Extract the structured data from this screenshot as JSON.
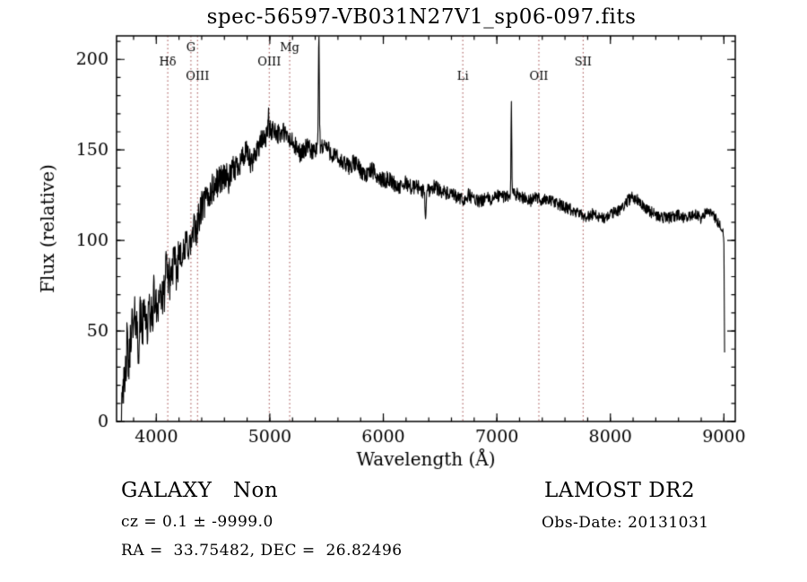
{
  "title": "spec-56597-VB031N27V1_sp06-097.fits",
  "annotations": {
    "class_label": "GALAXY   Non",
    "survey": "LAMOST DR2",
    "cz": "cz = 0.1 ± -9999.0",
    "obs_date": "Obs-Date: 20131031",
    "coords": "RA =  33.75482, DEC =  26.82496"
  },
  "chart_data": {
    "type": "line",
    "title": "spec-56597-VB031N27V1_sp06-097.fits",
    "xlabel": "Wavelength (Å)",
    "ylabel": "Flux (relative)",
    "xlim": [
      3650,
      9100
    ],
    "ylim": [
      0,
      213
    ],
    "x_ticks_major": [
      4000,
      5000,
      6000,
      7000,
      8000,
      9000
    ],
    "x_minor_step": 200,
    "y_ticks_major": [
      0,
      50,
      100,
      150,
      200
    ],
    "y_minor_step": 10,
    "grid": false,
    "legend": "none",
    "line_color": "#000000",
    "marker_line_color": "#a04848",
    "spectral_lines": [
      {
        "label": "Hδ",
        "wavelength": 4101,
        "row": 1
      },
      {
        "label": "G",
        "wavelength": 4305,
        "row": 0
      },
      {
        "label": "OIII",
        "wavelength": 4363,
        "row": 2
      },
      {
        "label": "OIII",
        "wavelength": 4995,
        "row": 1
      },
      {
        "label": "Mg",
        "wavelength": 5175,
        "row": 0
      },
      {
        "label": "Li",
        "wavelength": 6700,
        "row": 2
      },
      {
        "label": "OII",
        "wavelength": 7370,
        "row": 2
      },
      {
        "label": "SII",
        "wavelength": 7760,
        "row": 1
      }
    ],
    "spectrum_anchors": [
      [
        3690,
        4
      ],
      [
        3705,
        28
      ],
      [
        3720,
        12
      ],
      [
        3740,
        42
      ],
      [
        3760,
        30
      ],
      [
        3780,
        55
      ],
      [
        3800,
        48
      ],
      [
        3820,
        62
      ],
      [
        3840,
        40
      ],
      [
        3860,
        58
      ],
      [
        3880,
        52
      ],
      [
        3900,
        66
      ],
      [
        3920,
        50
      ],
      [
        3940,
        62
      ],
      [
        3960,
        55
      ],
      [
        3980,
        70
      ],
      [
        4000,
        62
      ],
      [
        4030,
        72
      ],
      [
        4060,
        65
      ],
      [
        4090,
        85
      ],
      [
        4120,
        78
      ],
      [
        4150,
        88
      ],
      [
        4180,
        82
      ],
      [
        4210,
        98
      ],
      [
        4240,
        90
      ],
      [
        4270,
        100
      ],
      [
        4300,
        96
      ],
      [
        4330,
        105
      ],
      [
        4360,
        108
      ],
      [
        4400,
        118
      ],
      [
        4440,
        122
      ],
      [
        4480,
        127
      ],
      [
        4520,
        130
      ],
      [
        4560,
        134
      ],
      [
        4600,
        136
      ],
      [
        4640,
        133
      ],
      [
        4680,
        139
      ],
      [
        4720,
        142
      ],
      [
        4760,
        146
      ],
      [
        4800,
        148
      ],
      [
        4840,
        141
      ],
      [
        4880,
        150
      ],
      [
        4920,
        154
      ],
      [
        4960,
        157
      ],
      [
        5000,
        160
      ],
      [
        5040,
        162
      ],
      [
        5080,
        158
      ],
      [
        5120,
        160
      ],
      [
        5160,
        156
      ],
      [
        5200,
        154
      ],
      [
        5240,
        150
      ],
      [
        5280,
        148
      ],
      [
        5320,
        151
      ],
      [
        5360,
        150
      ],
      [
        5400,
        149
      ],
      [
        5440,
        151
      ],
      [
        5480,
        153
      ],
      [
        5520,
        150
      ],
      [
        5560,
        147
      ],
      [
        5600,
        145
      ],
      [
        5650,
        142
      ],
      [
        5700,
        141
      ],
      [
        5750,
        143
      ],
      [
        5800,
        139
      ],
      [
        5850,
        136
      ],
      [
        5900,
        139
      ],
      [
        5950,
        135
      ],
      [
        6000,
        133
      ],
      [
        6050,
        134
      ],
      [
        6100,
        131
      ],
      [
        6150,
        129
      ],
      [
        6200,
        132
      ],
      [
        6250,
        129
      ],
      [
        6300,
        130
      ],
      [
        6350,
        127
      ],
      [
        6400,
        128
      ],
      [
        6450,
        130
      ],
      [
        6500,
        128
      ],
      [
        6550,
        126
      ],
      [
        6600,
        125
      ],
      [
        6650,
        124
      ],
      [
        6700,
        122
      ],
      [
        6750,
        125
      ],
      [
        6800,
        123
      ],
      [
        6850,
        121
      ],
      [
        6900,
        124
      ],
      [
        6950,
        122
      ],
      [
        7000,
        125
      ],
      [
        7050,
        124
      ],
      [
        7100,
        125
      ],
      [
        7150,
        126
      ],
      [
        7200,
        125
      ],
      [
        7250,
        123
      ],
      [
        7300,
        122
      ],
      [
        7350,
        124
      ],
      [
        7400,
        122
      ],
      [
        7450,
        123
      ],
      [
        7500,
        121
      ],
      [
        7550,
        120
      ],
      [
        7600,
        118
      ],
      [
        7650,
        117
      ],
      [
        7700,
        115
      ],
      [
        7750,
        114
      ],
      [
        7800,
        113
      ],
      [
        7850,
        115
      ],
      [
        7900,
        113
      ],
      [
        7950,
        112
      ],
      [
        8000,
        114
      ],
      [
        8050,
        116
      ],
      [
        8100,
        118
      ],
      [
        8150,
        122
      ],
      [
        8200,
        124
      ],
      [
        8250,
        122
      ],
      [
        8300,
        119
      ],
      [
        8350,
        116
      ],
      [
        8400,
        114
      ],
      [
        8450,
        113
      ],
      [
        8500,
        112
      ],
      [
        8550,
        113
      ],
      [
        8600,
        114
      ],
      [
        8650,
        112
      ],
      [
        8700,
        113
      ],
      [
        8750,
        115
      ],
      [
        8800,
        112
      ],
      [
        8850,
        117
      ],
      [
        8900,
        114
      ],
      [
        8950,
        110
      ],
      [
        8990,
        107
      ],
      [
        9000,
        100
      ],
      [
        9004,
        60
      ],
      [
        9008,
        22
      ]
    ],
    "spikes": [
      {
        "center": 5432,
        "amplitude": 64,
        "sigma": 6
      },
      {
        "center": 7128,
        "amplitude": 48,
        "sigma": 5
      },
      {
        "center": 4988,
        "amplitude": 16,
        "sigma": 4
      },
      {
        "center": 6372,
        "amplitude": -16,
        "sigma": 6
      }
    ],
    "noise_profile": [
      [
        3700,
        15
      ],
      [
        4500,
        9
      ],
      [
        5000,
        6
      ],
      [
        6000,
        4.5
      ],
      [
        7000,
        3.5
      ],
      [
        9050,
        3
      ]
    ],
    "noise": {
      "seed": 42,
      "step": 3
    }
  }
}
